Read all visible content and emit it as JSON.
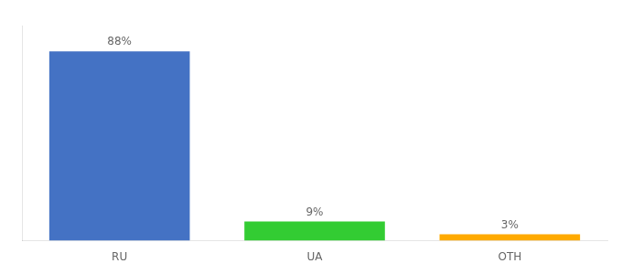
{
  "chart_data": {
    "type": "bar",
    "categories": [
      "RU",
      "UA",
      "OTH"
    ],
    "values": [
      88,
      9,
      3
    ],
    "value_labels": [
      "88%",
      "9%",
      "3%"
    ],
    "data_labels": true,
    "colors": [
      "#4472c4",
      "#33cc33",
      "#ffaa00"
    ],
    "ylim": [
      0,
      100
    ],
    "grid": false,
    "tick_labels": "x"
  }
}
